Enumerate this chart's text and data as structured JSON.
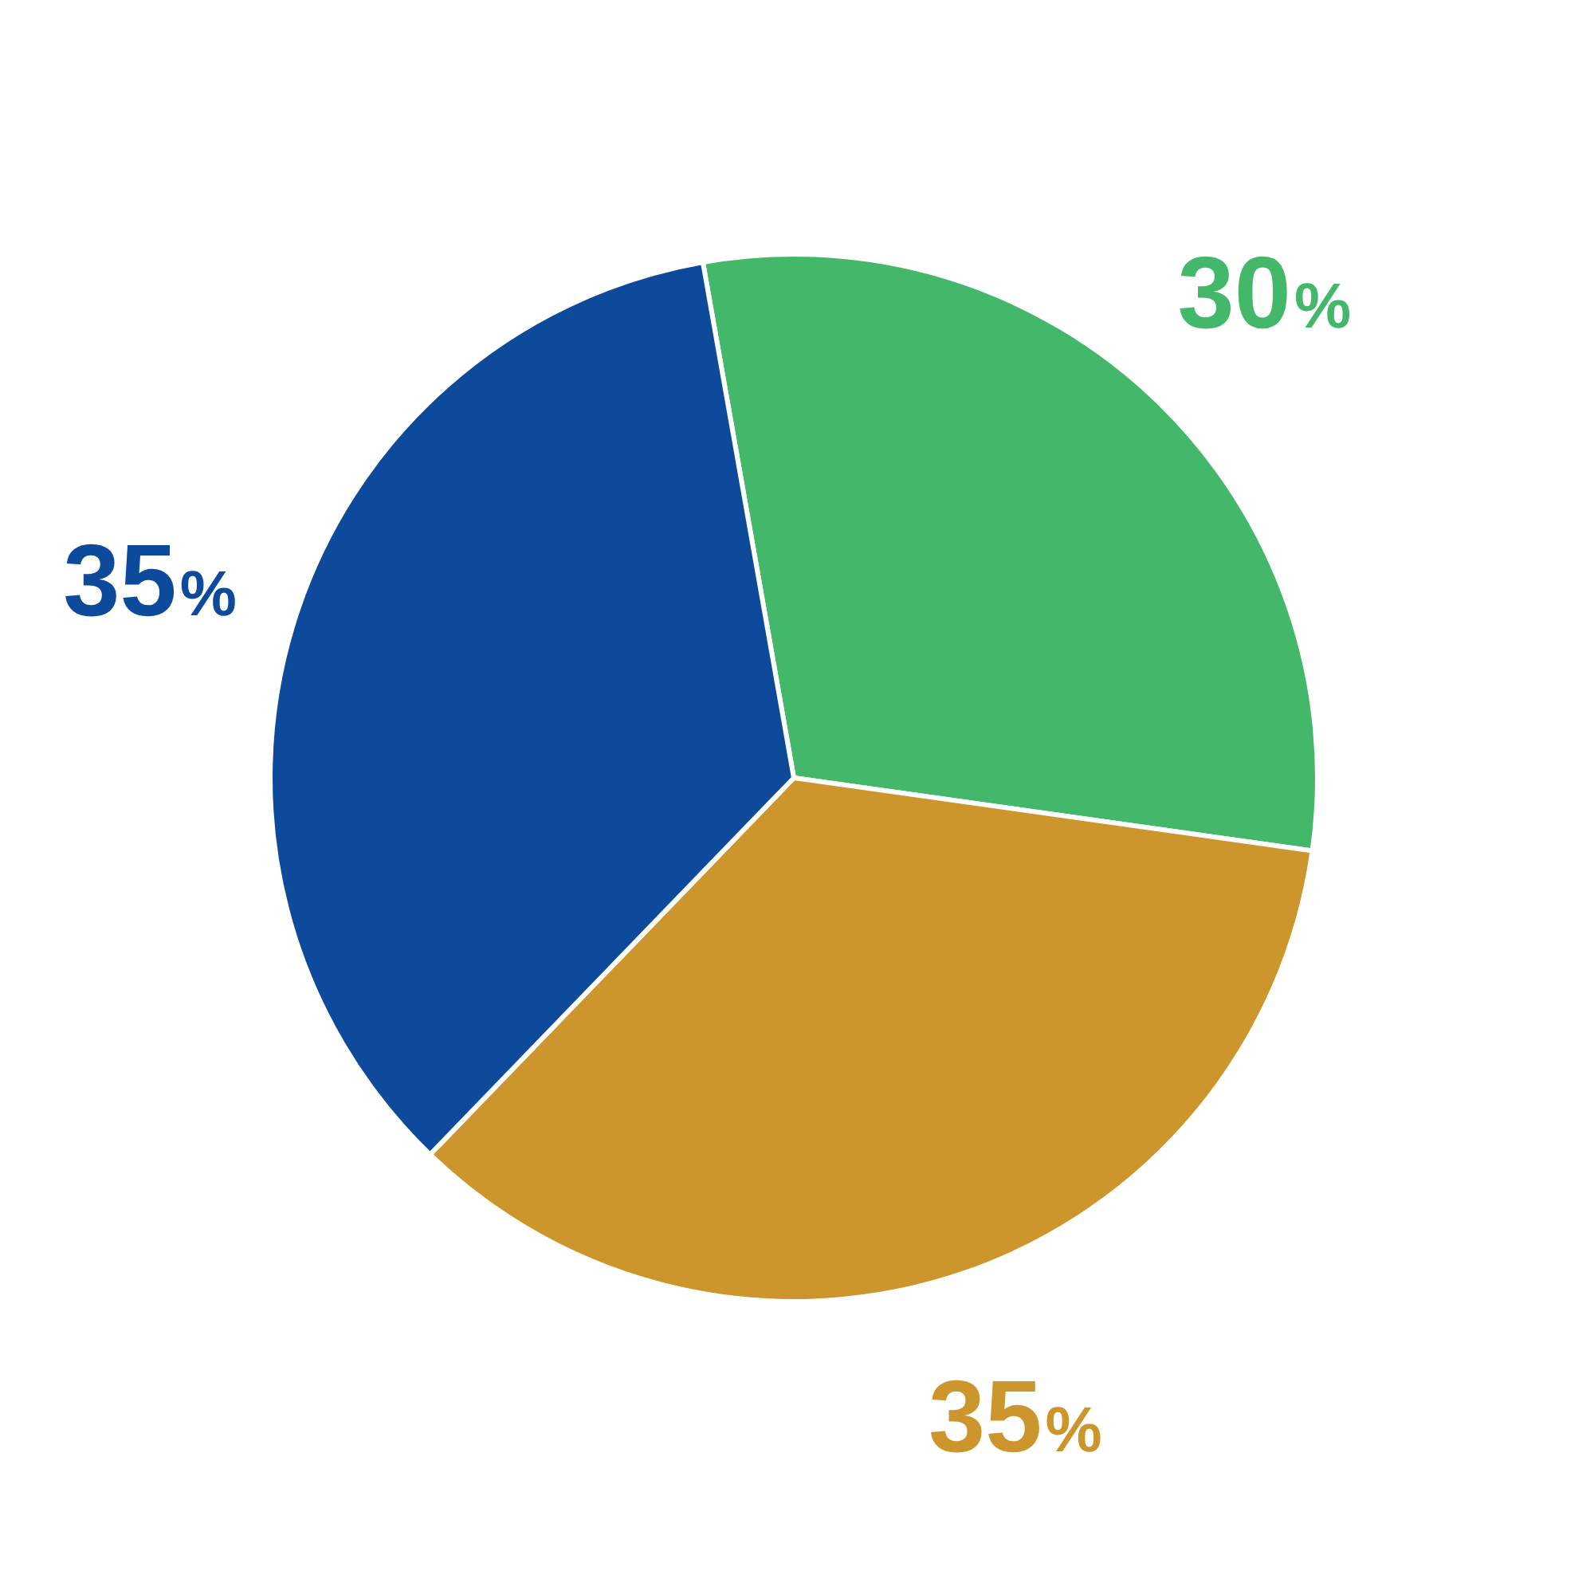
{
  "chart_data": {
    "type": "pie",
    "categories": [
      null,
      null,
      null
    ],
    "values": [
      30,
      35,
      35
    ],
    "colors": [
      "#43b86a",
      "#cc962c",
      "#0d4a9c"
    ],
    "value_labels": [
      "30%",
      "35%",
      "35%"
    ]
  }
}
